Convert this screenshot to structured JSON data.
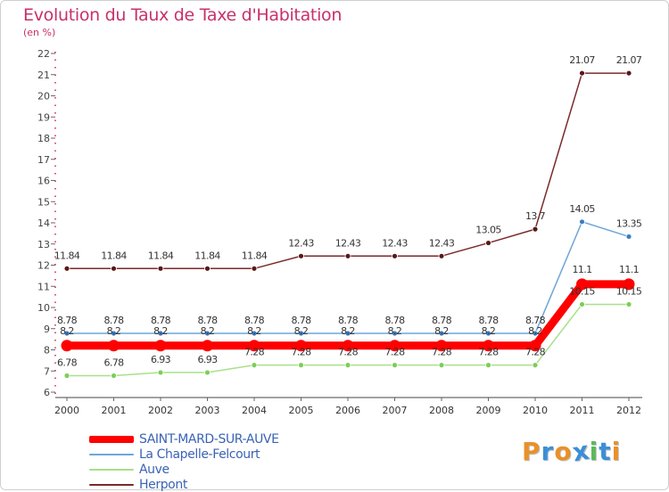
{
  "title": "Evolution du Taux de Taxe d'Habitation",
  "subtitle": "(en %)",
  "logo_text": "Proxiti",
  "logo_colors": [
    "#e8912b",
    "#3a8fd8",
    "#e8912b",
    "#3a8fd8",
    "#5cb85c",
    "#3a8fd8",
    "#e8912b"
  ],
  "chart_data": {
    "type": "line",
    "x": [
      "2000",
      "2001",
      "2002",
      "2003",
      "2004",
      "2005",
      "2006",
      "2007",
      "2008",
      "2009",
      "2010",
      "2011",
      "2012"
    ],
    "ylim": [
      6,
      22
    ],
    "yticks": [
      6,
      7,
      8,
      9,
      10,
      11,
      12,
      13,
      14,
      15,
      16,
      17,
      18,
      19,
      20,
      21,
      22
    ],
    "grid": false,
    "legend_position": "bottom-left",
    "series": [
      {
        "name": "SAINT-MARD-SUR-AUVE",
        "color": "#ff0000",
        "values": [
          8.2,
          8.2,
          8.2,
          8.2,
          8.2,
          8.2,
          8.2,
          8.2,
          8.2,
          8.2,
          8.2,
          11.1,
          11.1
        ],
        "labels": [
          "8.2",
          "8.2",
          "8.2",
          "8.2",
          "8.2",
          "8.2",
          "8.2",
          "8.2",
          "8.2",
          "8.2",
          "8.2",
          "11.1",
          "11.1"
        ]
      },
      {
        "name": "La Chapelle-Felcourt",
        "color": "#6ea6d8",
        "values": [
          8.78,
          8.78,
          8.78,
          8.78,
          8.78,
          8.78,
          8.78,
          8.78,
          8.78,
          8.78,
          8.78,
          14.05,
          13.35
        ],
        "labels": [
          "8.78",
          "8.78",
          "8.78",
          "8.78",
          "8.78",
          "8.78",
          "8.78",
          "8.78",
          "8.78",
          "8.78",
          "8.78",
          "14.05",
          "13.35"
        ]
      },
      {
        "name": "Auve",
        "color": "#a8e08a",
        "values": [
          6.78,
          6.78,
          6.93,
          6.93,
          7.28,
          7.28,
          7.28,
          7.28,
          7.28,
          7.28,
          7.28,
          10.15,
          10.15
        ],
        "labels": [
          "6.78",
          "6.78",
          "6.93",
          "6.93",
          "7.28",
          "7.28",
          "7.28",
          "7.28",
          "7.28",
          "7.28",
          "7.28",
          "10.15",
          "10.15"
        ]
      },
      {
        "name": "Herpont",
        "color": "#7a2a2a",
        "values": [
          11.84,
          11.84,
          11.84,
          11.84,
          11.84,
          12.43,
          12.43,
          12.43,
          12.43,
          13.05,
          13.7,
          21.07,
          21.07
        ],
        "labels": [
          "11.84",
          "11.84",
          "11.84",
          "11.84",
          "11.84",
          "12.43",
          "12.43",
          "12.43",
          "12.43",
          "13.05",
          "13.7",
          "21.07",
          "21.07"
        ]
      }
    ]
  }
}
